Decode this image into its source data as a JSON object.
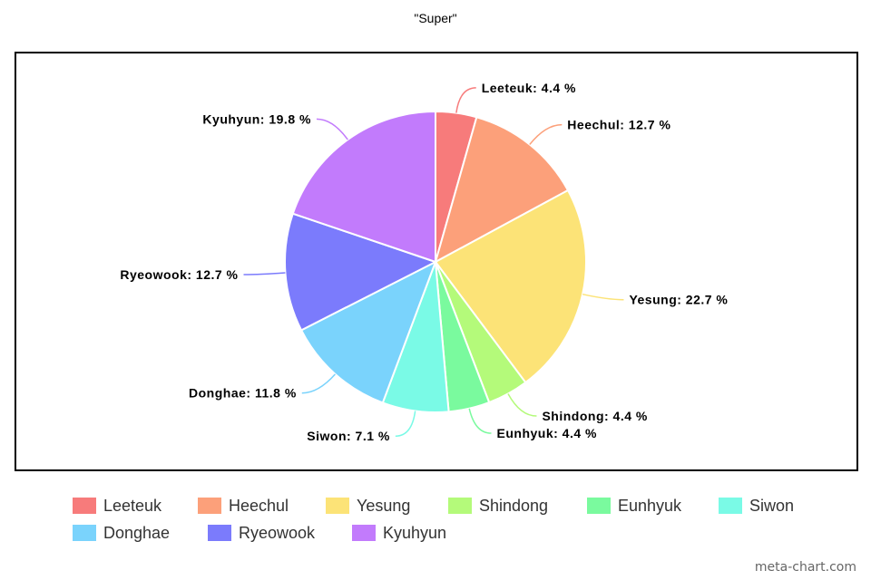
{
  "chart_data": {
    "type": "pie",
    "title": "\"Super\"",
    "categories": [
      "Leeteuk",
      "Heechul",
      "Yesung",
      "Shindong",
      "Eunhyuk",
      "Siwon",
      "Donghae",
      "Ryeowook",
      "Kyuhyun"
    ],
    "values": [
      4.4,
      12.7,
      22.7,
      4.4,
      4.4,
      7.1,
      11.8,
      12.7,
      19.8
    ],
    "labels": [
      "Leeteuk: 4.4 %",
      "Heechul: 12.7 %",
      "Yesung: 22.7 %",
      "Shindong: 4.4 %",
      "Eunhyuk: 4.4 %",
      "Siwon: 7.1 %",
      "Donghae: 11.8 %",
      "Ryeowook: 12.7 %",
      "Kyuhyun: 19.8 %"
    ],
    "colors": [
      "#f77b7b",
      "#fca07a",
      "#fce377",
      "#b4fa7a",
      "#7afa9e",
      "#7afae6",
      "#7ad3fc",
      "#7b7bfc",
      "#c27bfc"
    ],
    "legend_position": "bottom"
  },
  "watermark": "meta-chart.com"
}
